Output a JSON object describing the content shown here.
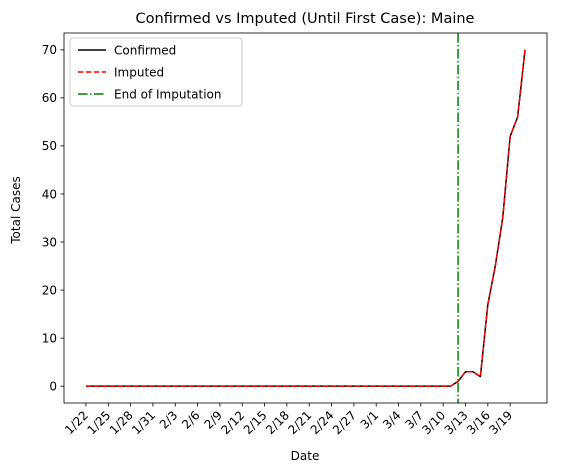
{
  "chart_data": {
    "type": "line",
    "title": "Confirmed vs Imputed (Until First Case): Maine",
    "xlabel": "Date",
    "ylabel": "Total Cases",
    "ylim": [
      -3.5,
      73.5
    ],
    "yticks": [
      0,
      10,
      20,
      30,
      40,
      50,
      60,
      70
    ],
    "x_dates": [
      "1/22",
      "1/23",
      "1/24",
      "1/25",
      "1/26",
      "1/27",
      "1/28",
      "1/29",
      "1/30",
      "1/31",
      "2/1",
      "2/2",
      "2/3",
      "2/4",
      "2/5",
      "2/6",
      "2/7",
      "2/8",
      "2/9",
      "2/10",
      "2/11",
      "2/12",
      "2/13",
      "2/14",
      "2/15",
      "2/16",
      "2/17",
      "2/18",
      "2/19",
      "2/20",
      "2/21",
      "2/22",
      "2/23",
      "2/24",
      "2/25",
      "2/26",
      "2/27",
      "2/28",
      "2/29",
      "3/1",
      "3/2",
      "3/3",
      "3/4",
      "3/5",
      "3/6",
      "3/7",
      "3/8",
      "3/9",
      "3/10",
      "3/11",
      "3/12",
      "3/13",
      "3/14",
      "3/15",
      "3/16",
      "3/17",
      "3/18",
      "3/19",
      "3/20",
      "3/21"
    ],
    "xtick_labels": [
      "1/22",
      "1/25",
      "1/28",
      "1/31",
      "2/3",
      "2/6",
      "2/9",
      "2/12",
      "2/15",
      "2/18",
      "2/21",
      "2/24",
      "2/27",
      "3/1",
      "3/4",
      "3/7",
      "3/10",
      "3/13",
      "3/16",
      "3/19"
    ],
    "series": [
      {
        "name": "Confirmed",
        "color": "#000000",
        "style": "solid",
        "values": [
          0,
          0,
          0,
          0,
          0,
          0,
          0,
          0,
          0,
          0,
          0,
          0,
          0,
          0,
          0,
          0,
          0,
          0,
          0,
          0,
          0,
          0,
          0,
          0,
          0,
          0,
          0,
          0,
          0,
          0,
          0,
          0,
          0,
          0,
          0,
          0,
          0,
          0,
          0,
          0,
          0,
          0,
          0,
          0,
          0,
          0,
          0,
          0,
          0,
          0,
          1,
          3,
          3,
          2,
          17,
          25,
          35,
          52,
          56,
          70
        ]
      },
      {
        "name": "Imputed",
        "color": "#ff0000",
        "style": "dashed",
        "values": [
          0,
          0,
          0,
          0,
          0,
          0,
          0,
          0,
          0,
          0,
          0,
          0,
          0,
          0,
          0,
          0,
          0,
          0,
          0,
          0,
          0,
          0,
          0,
          0,
          0,
          0,
          0,
          0,
          0,
          0,
          0,
          0,
          0,
          0,
          0,
          0,
          0,
          0,
          0,
          0,
          0,
          0,
          0,
          0,
          0,
          0,
          0,
          0,
          0,
          0,
          1,
          3,
          3,
          2,
          17,
          25,
          35,
          52,
          56,
          70
        ]
      }
    ],
    "vline": {
      "name": "End of Imputation",
      "color": "#008000",
      "style": "dashdot",
      "x": "3/12"
    },
    "legend": {
      "position": "top-left",
      "entries": [
        "Confirmed",
        "Imputed",
        "End of Imputation"
      ]
    },
    "grid": false
  }
}
